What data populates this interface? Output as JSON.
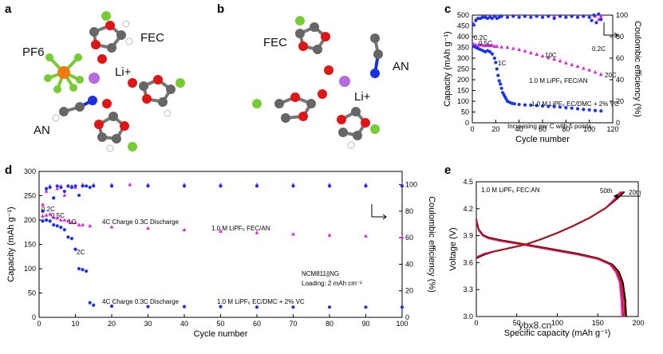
{
  "panels": {
    "a": {
      "label": "a",
      "molecules": [
        "PF6",
        "FEC",
        "Li+",
        "AN"
      ]
    },
    "b": {
      "label": "b",
      "molecules": [
        "FEC",
        "AN",
        "Li+"
      ]
    },
    "c": {
      "label": "c"
    },
    "d": {
      "label": "d"
    },
    "e": {
      "label": "e"
    }
  },
  "watermark": "ybx8.cn",
  "colors": {
    "magenta": "#e020e0",
    "blue": "#1a33ee",
    "black": "#000000",
    "red": "#cc1111",
    "lithium": "#b56ae0",
    "carbon": "#666666",
    "oxygen": "#e01515",
    "fluorine": "#77cc33",
    "nitrogen": "#1a2fe0",
    "phosphorus": "#ee7a10",
    "hydrogen": "#ffffff"
  },
  "chart_data": [
    {
      "id": "c",
      "type": "scatter",
      "xlabel": "Cycle number",
      "ylabel": "Capacity (mAh g⁻¹)",
      "y2label": "Coulombic efficiency (%)",
      "xlim": [
        0,
        120
      ],
      "ylim": [
        0,
        500
      ],
      "y2lim": [
        0,
        100
      ],
      "xticks": [
        "0",
        "20",
        "40",
        "60",
        "80",
        "100",
        "120"
      ],
      "yticks": [
        "0",
        "50",
        "100",
        "150",
        "200",
        "250",
        "300",
        "350",
        "400",
        "450",
        "500"
      ],
      "y2ticks": [
        "0",
        "20",
        "40",
        "60",
        "80",
        "100"
      ],
      "series": [
        {
          "name": "1.0 M LiPF₆ FEC/AN",
          "axis": "left",
          "color": "magenta",
          "x": [
            1,
            3,
            5,
            7,
            9,
            11,
            13,
            15,
            17,
            19,
            21,
            25,
            30,
            35,
            40,
            45,
            50,
            55,
            60,
            65,
            70,
            75,
            80,
            85,
            90,
            95,
            100,
            105,
            110
          ],
          "y": [
            365,
            362,
            360,
            362,
            360,
            358,
            360,
            358,
            360,
            355,
            355,
            352,
            350,
            345,
            340,
            333,
            325,
            318,
            310,
            302,
            295,
            287,
            278,
            270,
            262,
            253,
            245,
            235,
            225
          ]
        },
        {
          "name": "1.0 M LiPF₆ EC/DMC + 2% VC",
          "axis": "left",
          "color": "blue",
          "x": [
            1,
            3,
            5,
            7,
            9,
            11,
            13,
            15,
            17,
            19,
            20,
            21,
            22,
            23,
            24,
            25,
            26,
            27,
            28,
            29,
            30,
            32,
            34,
            36,
            40,
            45,
            50,
            55,
            60,
            65,
            70,
            75,
            80,
            85,
            90,
            95,
            100,
            105,
            110
          ],
          "y": [
            355,
            350,
            345,
            340,
            335,
            330,
            335,
            330,
            320,
            300,
            280,
            250,
            220,
            195,
            180,
            160,
            140,
            130,
            120,
            110,
            100,
            95,
            90,
            88,
            85,
            83,
            82,
            80,
            78,
            76,
            75,
            73,
            70,
            68,
            65,
            62,
            60,
            57,
            55
          ]
        },
        {
          "name": "CE 1.0 M LiPF₆ FEC/AN",
          "axis": "right",
          "color": "magenta",
          "x": [
            1,
            3,
            5,
            8,
            12,
            16,
            20,
            25,
            30,
            35,
            40,
            45,
            50,
            55,
            60,
            65,
            70,
            75,
            80,
            85,
            90,
            95,
            100,
            105,
            108,
            110
          ],
          "y": [
            92,
            96,
            97,
            98,
            98,
            98.5,
            99,
            99,
            99,
            99,
            99,
            99,
            99,
            99,
            99,
            99,
            99,
            99,
            99,
            99,
            99,
            99,
            99,
            99,
            96,
            99
          ]
        },
        {
          "name": "CE 1.0 M LiPF₆ EC/DMC + 2% VC",
          "axis": "right",
          "color": "blue",
          "x": [
            1,
            3,
            5,
            7,
            9,
            11,
            13,
            15,
            17,
            19,
            21,
            23,
            25,
            30,
            35,
            40,
            45,
            50,
            55,
            60,
            65,
            70,
            75,
            80,
            85,
            90,
            95,
            100,
            102,
            104,
            106,
            108,
            110
          ],
          "y": [
            91,
            95,
            97,
            97,
            98,
            98,
            97,
            98,
            97,
            99,
            97,
            98,
            99,
            98,
            99,
            98,
            99,
            98,
            99,
            98,
            99,
            97,
            99,
            98,
            99,
            98,
            99,
            98,
            95,
            100,
            93,
            101,
            96
          ]
        }
      ],
      "annotations": [
        "0.2C",
        "0.5C",
        "1C",
        "10C",
        "20C",
        "0.2C",
        "1.0 M LiPF₆ FEC/AN",
        "1.0 M LiPF₆ EC/DMC + 2% VC",
        "Increasing per C with 5 points"
      ]
    },
    {
      "id": "d",
      "type": "scatter",
      "xlabel": "Cycle number",
      "ylabel": "Capacity (mAh g⁻¹)",
      "y2label": "Coulombic efficiency (%)",
      "xlim": [
        0,
        100
      ],
      "ylim": [
        0,
        300
      ],
      "y2lim": [
        0,
        110
      ],
      "xticks": [
        "0",
        "10",
        "20",
        "30",
        "40",
        "50",
        "60",
        "70",
        "80",
        "90",
        "100"
      ],
      "yticks": [
        "0",
        "50",
        "100",
        "150",
        "200",
        "250",
        "300"
      ],
      "y2ticks": [
        "0",
        "20",
        "40",
        "60",
        "80",
        "100"
      ],
      "series": [
        {
          "name": "1.0 M LiPF₆ FEC/AN",
          "axis": "left",
          "color": "magenta",
          "x": [
            1,
            2,
            3,
            4,
            5,
            6,
            7,
            8,
            9,
            10,
            11,
            12,
            14,
            20,
            30,
            40,
            50,
            60,
            70,
            80,
            90,
            100
          ],
          "y": [
            208,
            210,
            212,
            205,
            204,
            200,
            200,
            198,
            195,
            195,
            190,
            190,
            188,
            186,
            183,
            180,
            177,
            174,
            171,
            169,
            167,
            165
          ]
        },
        {
          "name": "1.0 M LiPF₆ EC/DMC + 2% VC",
          "axis": "left",
          "color": "blue",
          "x": [
            1,
            2,
            3,
            4,
            5,
            6,
            7,
            8,
            9,
            10,
            11,
            12,
            13,
            14,
            15,
            20,
            30,
            40,
            50,
            60,
            70,
            80,
            90,
            100
          ],
          "y": [
            198,
            200,
            198,
            190,
            188,
            185,
            180,
            165,
            162,
            140,
            100,
            98,
            95,
            30,
            25,
            23,
            22,
            22,
            22,
            21,
            21,
            21,
            21,
            21
          ]
        },
        {
          "name": "CE 1.0 M LiPF₆ FEC/AN",
          "axis": "right",
          "color": "magenta",
          "x": [
            1,
            2,
            3,
            4,
            5,
            6,
            7,
            8,
            9,
            10,
            12,
            15,
            20,
            25,
            30,
            40,
            50,
            60,
            70,
            80,
            90,
            100
          ],
          "y": [
            85,
            95,
            99,
            90,
            97,
            99,
            92,
            99,
            99,
            98,
            100,
            100,
            100,
            100,
            100,
            100,
            100,
            100,
            100,
            100,
            100,
            100
          ]
        },
        {
          "name": "CE 1.0 M LiPF₆ EC/DMC + 2% VC",
          "axis": "right",
          "color": "blue",
          "x": [
            1,
            2,
            3,
            4,
            5,
            6,
            7,
            8,
            9,
            10,
            11,
            12,
            13,
            14,
            15,
            20,
            30,
            40,
            50,
            60,
            70,
            80,
            90,
            100
          ],
          "y": [
            80,
            97,
            98,
            90,
            99,
            98,
            95,
            99,
            98,
            99,
            92,
            99,
            99,
            98,
            99,
            99,
            99,
            99,
            99,
            99,
            99,
            99,
            99,
            99
          ]
        }
      ],
      "annotations": [
        "0.2C",
        "0.5C",
        "1C",
        "2C",
        "4C Charge 0.3C Discharge",
        "4C Charge 0.3C Discharge",
        "1.0 M LiPF₆ FEC/AN",
        "1.0 M LiPF₆ EC/DMC + 2% VC",
        "NCM811||NG",
        "Loading: 2 mAh cm⁻²"
      ]
    },
    {
      "id": "e",
      "type": "line",
      "xlabel": "Specific capacity (mAh g⁻¹)",
      "ylabel": "Voltage (V)",
      "xlim": [
        0,
        200
      ],
      "ylim": [
        3.0,
        4.5
      ],
      "xticks": [
        "0",
        "50",
        "100",
        "150",
        "200"
      ],
      "yticks": [
        "3.0",
        "3.3",
        "3.6",
        "3.9",
        "4.2",
        "4.5"
      ],
      "series": [
        {
          "name": "50th",
          "color": "magenta",
          "charge": {
            "x": [
              0,
              10,
              20,
              40,
              60,
              80,
              100,
              120,
              140,
              160,
              170,
              178
            ],
            "y": [
              3.66,
              3.7,
              3.72,
              3.76,
              3.8,
              3.86,
              3.93,
              4.01,
              4.1,
              4.21,
              4.3,
              4.39
            ]
          },
          "discharge": {
            "x": [
              0,
              3,
              8,
              15,
              30,
              50,
              75,
              100,
              125,
              150,
              165,
              172,
              177,
              179,
              180
            ],
            "y": [
              4.07,
              3.96,
              3.9,
              3.87,
              3.84,
              3.81,
              3.77,
              3.73,
              3.69,
              3.64,
              3.58,
              3.5,
              3.38,
              3.18,
              3.0
            ]
          }
        },
        {
          "name": "20th",
          "color": "black",
          "charge": {
            "x": [
              0,
              10,
              20,
              40,
              60,
              80,
              100,
              120,
              140,
              160,
              175,
              183
            ],
            "y": [
              3.65,
              3.69,
              3.72,
              3.76,
              3.8,
              3.86,
              3.93,
              4.01,
              4.1,
              4.21,
              4.32,
              4.39
            ]
          },
          "discharge": {
            "x": [
              0,
              3,
              8,
              15,
              30,
              50,
              75,
              100,
              125,
              150,
              168,
              176,
              181,
              184,
              185
            ],
            "y": [
              4.08,
              3.97,
              3.91,
              3.88,
              3.85,
              3.82,
              3.78,
              3.74,
              3.7,
              3.65,
              3.58,
              3.5,
              3.38,
              3.18,
              3.0
            ]
          }
        }
      ],
      "annotations": [
        "1.0 M LiPF₆ FEC:AN",
        "50th",
        "20th"
      ]
    }
  ]
}
